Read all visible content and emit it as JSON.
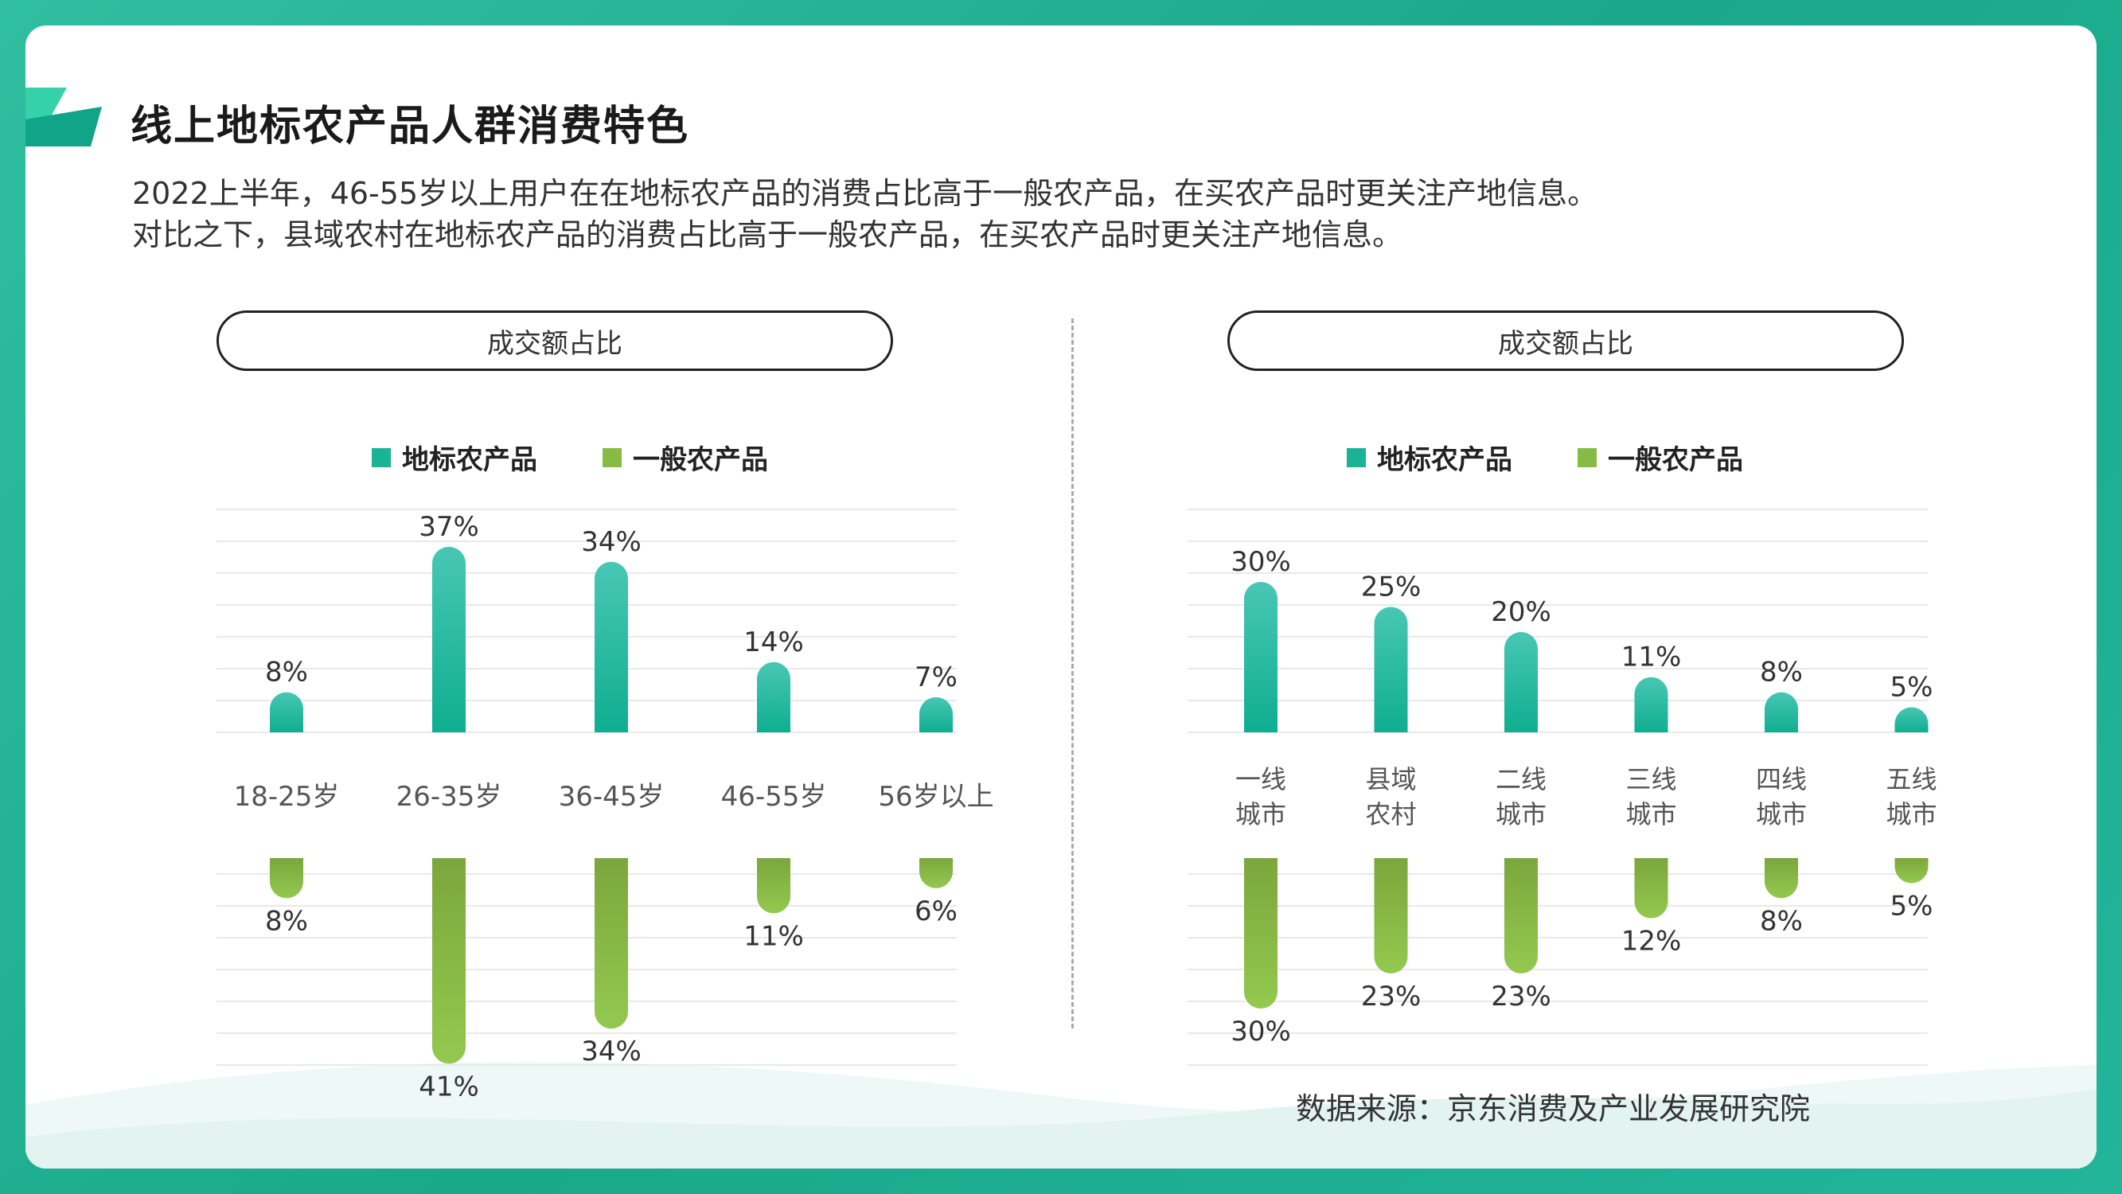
{
  "page": {
    "title": "线上地标农产品人群消费特色",
    "desc_line1": "2022上半年，46-55岁以上用户在在地标农产品的消费占比高于一般农产品，在买农产品时更关注产地信息。",
    "desc_line2": "对比之下，县域农村在地标农产品的消费占比高于一般农产品，在买农产品时更关注产地信息。",
    "source": "数据来源：京东消费及产业发展研究院"
  },
  "colors": {
    "teal_top": "#48c7b4",
    "teal_bottom": "#0fae91",
    "green_top": "#7ba63c",
    "green_bottom": "#93c94f",
    "grid": "#e9e9e9"
  },
  "chart_data": [
    {
      "type": "bar",
      "title": "成交额占比",
      "categories": [
        "18-25岁",
        "26-35岁",
        "36-45岁",
        "46-55岁",
        "56岁以上"
      ],
      "series": [
        {
          "name": "地标农产品",
          "values": [
            8,
            37,
            34,
            14,
            7
          ]
        },
        {
          "name": "一般农产品",
          "values": [
            8,
            41,
            34,
            11,
            6
          ]
        }
      ],
      "layout": "mirrored (first series up, second series down)",
      "unit": "%"
    },
    {
      "type": "bar",
      "title": "成交额占比",
      "categories": [
        "一线城市",
        "县域农村",
        "二线城市",
        "三线城市",
        "四线城市",
        "五线城市"
      ],
      "category_lines": [
        [
          "一线",
          "城市"
        ],
        [
          "县域",
          "农村"
        ],
        [
          "二线",
          "城市"
        ],
        [
          "三线",
          "城市"
        ],
        [
          "四线",
          "城市"
        ],
        [
          "五线",
          "城市"
        ]
      ],
      "series": [
        {
          "name": "地标农产品",
          "values": [
            30,
            25,
            20,
            11,
            8,
            5
          ]
        },
        {
          "name": "一般农产品",
          "values": [
            30,
            23,
            23,
            12,
            8,
            5
          ]
        }
      ],
      "layout": "mirrored (first series up, second series down)",
      "unit": "%"
    }
  ]
}
